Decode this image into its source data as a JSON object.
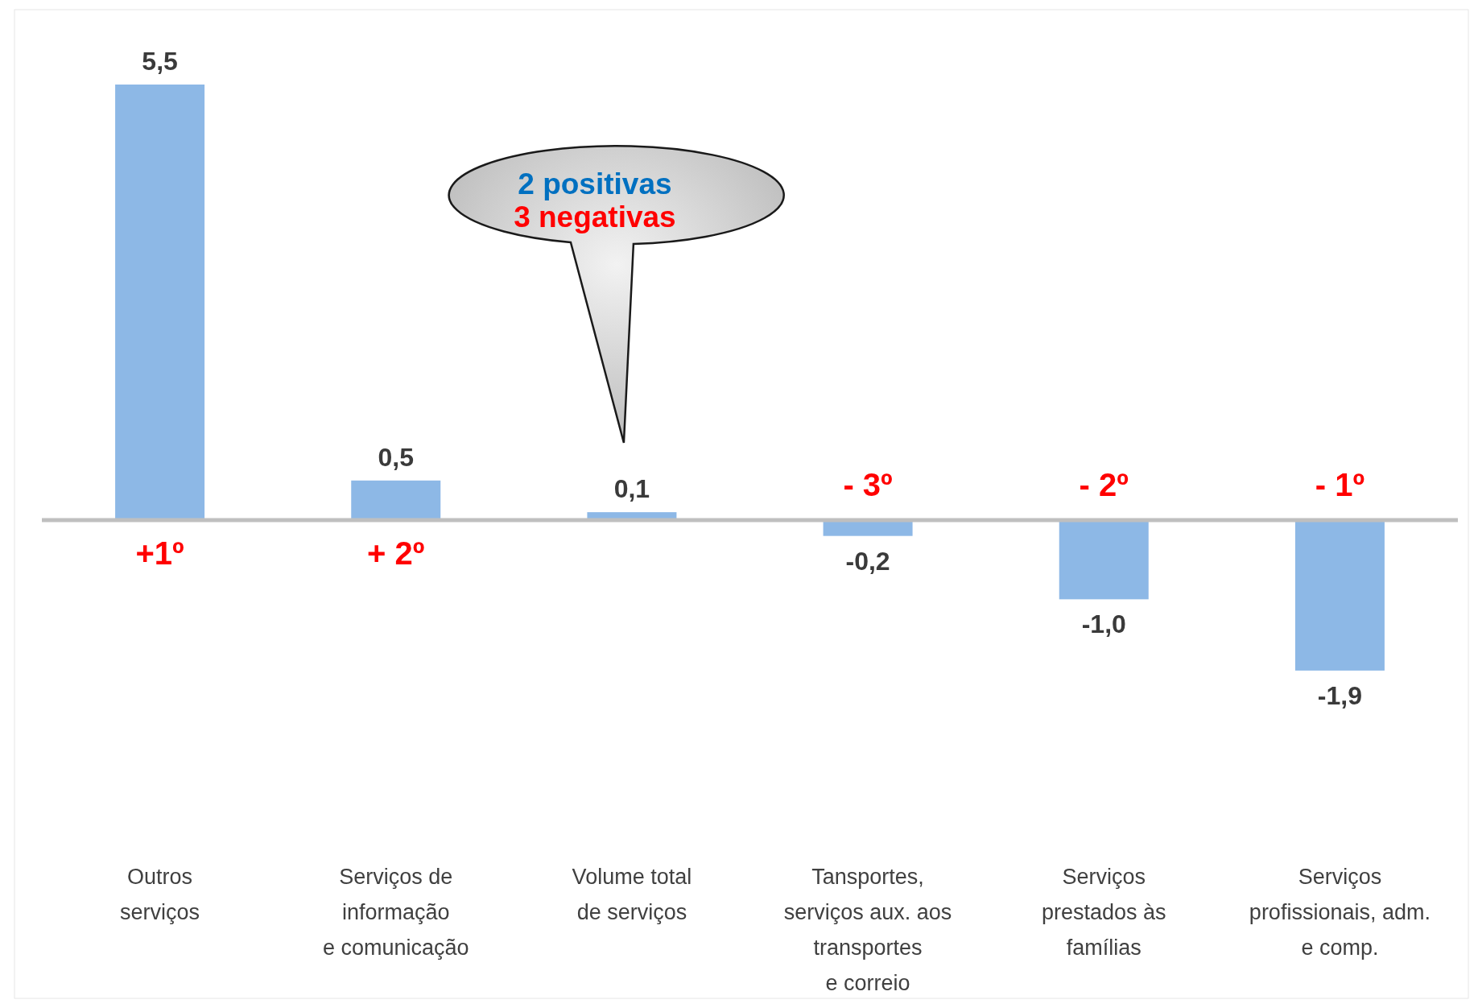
{
  "chart_data": {
    "type": "bar",
    "relative": false,
    "categories": [
      "Outros\nserviços",
      "Serviços de\ninformação\ne comunicação",
      "Volume total\nde serviços",
      "Tansportes,\nserviços aux. aos\ntransportes\ne correio",
      "Serviços\nprestados às\nfamílias",
      "Serviços\nprofissionais, adm.\ne comp."
    ],
    "values": [
      5.5,
      0.5,
      0.1,
      -0.2,
      -1.0,
      -1.9
    ],
    "value_labels": [
      "5,5",
      "0,5",
      "0,1",
      "-0,2",
      "-1,0",
      "-1,9"
    ],
    "color": "#8db8e6",
    "annotations": [
      {
        "text": "+1º",
        "x": "Outros\nserviços",
        "y": 0
      },
      {
        "text": "+ 2º",
        "x": "Serviços de\ninformação\ne comunicação",
        "y": 0
      },
      {
        "text": "- 3º",
        "x": "Tansportes,\nserviços aux. aos\ntransportes\ne correio",
        "y": 0
      },
      {
        "text": "- 2º",
        "x": "Serviços\nprestados às\nfamílias",
        "y": 0
      },
      {
        "text": "- 1º",
        "x": "Serviços\nprofissionais, adm.\ne comp.",
        "y": 0
      },
      "2 positivas",
      "3 negativas"
    ]
  }
}
